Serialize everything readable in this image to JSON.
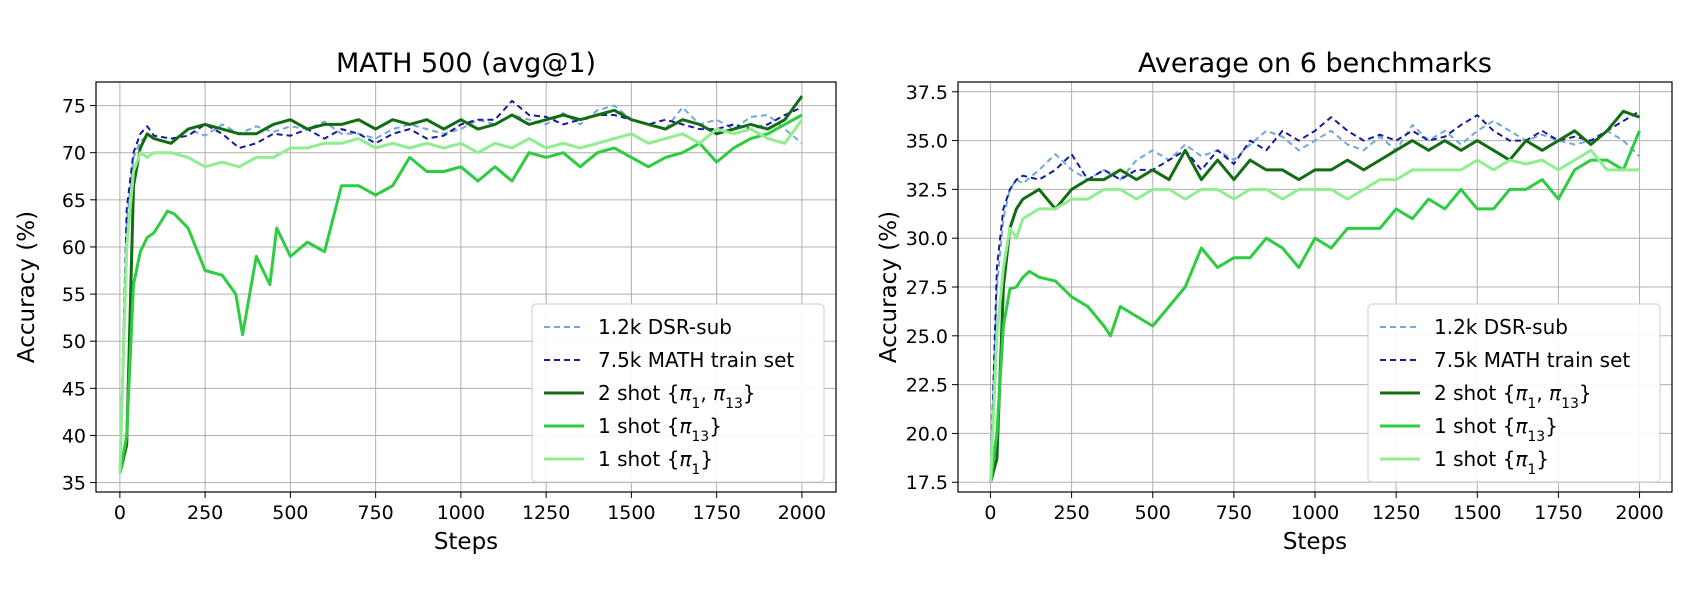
{
  "chart_data": [
    {
      "type": "line",
      "title": "MATH 500 (avg@1)",
      "xlabel": "Steps",
      "ylabel": "Accuracy (%)",
      "xlim": [
        -70,
        2100
      ],
      "ylim": [
        34,
        77.5
      ],
      "grid": true,
      "legend_position": "lower-right",
      "xticks": [
        0,
        250,
        500,
        750,
        1000,
        1250,
        1500,
        1750,
        2000
      ],
      "xtick_labels": [
        "0",
        "250",
        "500",
        "750",
        "1000",
        "1250",
        "1500",
        "1750",
        "2000"
      ],
      "yticks": [
        35,
        40,
        45,
        50,
        55,
        60,
        65,
        70,
        75
      ],
      "ytick_labels": [
        "35",
        "40",
        "45",
        "50",
        "55",
        "60",
        "65",
        "70",
        "75"
      ],
      "series": [
        {
          "name": "1.2k DSR-sub",
          "color": "#6fa8dc",
          "style": "dashed",
          "x": [
            0,
            20,
            40,
            60,
            80,
            100,
            150,
            200,
            250,
            300,
            350,
            400,
            450,
            500,
            550,
            600,
            650,
            700,
            750,
            800,
            850,
            900,
            950,
            1000,
            1050,
            1100,
            1150,
            1200,
            1250,
            1300,
            1350,
            1400,
            1450,
            1500,
            1550,
            1600,
            1650,
            1700,
            1750,
            1800,
            1850,
            1900,
            1950,
            2000
          ],
          "y": [
            36.5,
            62.5,
            69.5,
            71.2,
            71.8,
            71.5,
            71.0,
            72.5,
            71.8,
            73.0,
            72.0,
            72.8,
            72.2,
            72.8,
            72.5,
            73.3,
            72.0,
            72.0,
            71.5,
            72.5,
            73.0,
            72.5,
            72.0,
            72.5,
            73.5,
            73.0,
            74.0,
            73.5,
            73.0,
            74.2,
            73.0,
            74.5,
            75.0,
            73.5,
            73.0,
            72.5,
            74.8,
            73.0,
            73.5,
            72.5,
            73.8,
            74.0,
            72.5,
            71.0
          ]
        },
        {
          "name": "7.5k MATH train set",
          "color": "#1a1a9e",
          "style": "dashed",
          "x": [
            0,
            20,
            40,
            60,
            80,
            100,
            150,
            200,
            250,
            300,
            350,
            400,
            450,
            500,
            550,
            600,
            650,
            700,
            750,
            800,
            850,
            900,
            950,
            1000,
            1050,
            1100,
            1150,
            1200,
            1250,
            1300,
            1350,
            1400,
            1450,
            1500,
            1550,
            1600,
            1650,
            1700,
            1750,
            1800,
            1850,
            1900,
            1950,
            2000
          ],
          "y": [
            36.0,
            64.0,
            70.0,
            72.0,
            72.8,
            71.8,
            71.5,
            71.8,
            73.0,
            72.0,
            70.5,
            71.0,
            72.0,
            71.8,
            72.5,
            71.5,
            72.5,
            72.0,
            71.0,
            72.0,
            72.5,
            71.5,
            71.8,
            73.0,
            73.5,
            73.5,
            75.5,
            74.0,
            73.8,
            73.0,
            73.5,
            74.0,
            74.0,
            73.5,
            73.0,
            73.5,
            73.0,
            72.5,
            72.5,
            73.0,
            72.5,
            73.0,
            74.0,
            74.8
          ]
        },
        {
          "name": "2 shot {π1, π13}",
          "color": "#136b13",
          "style": "solid",
          "x": [
            0,
            20,
            40,
            60,
            80,
            100,
            150,
            200,
            250,
            300,
            350,
            400,
            450,
            500,
            550,
            600,
            650,
            700,
            750,
            800,
            850,
            900,
            950,
            1000,
            1050,
            1100,
            1150,
            1200,
            1250,
            1300,
            1350,
            1400,
            1450,
            1500,
            1550,
            1600,
            1650,
            1700,
            1750,
            1800,
            1850,
            1900,
            1950,
            2000
          ],
          "y": [
            36.0,
            39.0,
            66.5,
            70.5,
            72.0,
            71.5,
            71.0,
            72.5,
            73.0,
            72.5,
            72.0,
            72.0,
            73.0,
            73.5,
            72.5,
            73.0,
            73.0,
            73.5,
            72.5,
            73.5,
            73.0,
            73.5,
            72.5,
            73.5,
            72.5,
            73.0,
            74.0,
            73.0,
            73.5,
            74.0,
            73.5,
            74.0,
            74.5,
            73.5,
            73.0,
            72.5,
            73.5,
            73.0,
            72.0,
            72.5,
            73.0,
            72.5,
            73.5,
            76.0
          ]
        },
        {
          "name": "1 shot {π13}",
          "color": "#2ecc40",
          "style": "solid",
          "x": [
            0,
            20,
            40,
            60,
            80,
            100,
            140,
            160,
            200,
            250,
            300,
            340,
            360,
            400,
            440,
            460,
            500,
            550,
            600,
            650,
            700,
            750,
            800,
            850,
            900,
            950,
            1000,
            1050,
            1100,
            1150,
            1200,
            1250,
            1300,
            1350,
            1400,
            1450,
            1500,
            1550,
            1600,
            1650,
            1700,
            1750,
            1800,
            1850,
            1900,
            1950,
            2000
          ],
          "y": [
            36.0,
            40.0,
            56.0,
            59.5,
            61.0,
            61.5,
            63.8,
            63.5,
            62.0,
            57.5,
            57.0,
            55.0,
            50.7,
            59.0,
            56.0,
            62.0,
            59.0,
            60.5,
            59.5,
            66.5,
            66.5,
            65.5,
            66.5,
            69.5,
            68.0,
            68.0,
            68.5,
            67.0,
            68.5,
            67.0,
            70.0,
            69.5,
            70.0,
            68.5,
            70.0,
            70.5,
            69.5,
            68.5,
            69.5,
            70.0,
            71.0,
            69.0,
            70.5,
            71.5,
            72.0,
            73.0,
            74.0
          ]
        },
        {
          "name": "1 shot {π1}",
          "color": "#90ee90",
          "style": "solid",
          "x": [
            0,
            20,
            40,
            60,
            80,
            100,
            150,
            200,
            250,
            300,
            350,
            400,
            450,
            500,
            550,
            600,
            650,
            700,
            750,
            800,
            850,
            900,
            950,
            1000,
            1050,
            1100,
            1150,
            1200,
            1250,
            1300,
            1350,
            1400,
            1450,
            1500,
            1550,
            1600,
            1650,
            1700,
            1750,
            1800,
            1850,
            1900,
            1950,
            2000
          ],
          "y": [
            36.0,
            60.0,
            68.0,
            70.0,
            69.5,
            70.0,
            70.0,
            69.5,
            68.5,
            69.0,
            68.5,
            69.5,
            69.5,
            70.5,
            70.5,
            71.0,
            71.0,
            71.5,
            70.5,
            71.0,
            70.5,
            71.0,
            70.5,
            71.0,
            70.0,
            71.0,
            70.5,
            71.5,
            70.5,
            71.0,
            70.5,
            71.0,
            71.5,
            72.0,
            71.0,
            71.5,
            72.0,
            71.0,
            72.5,
            72.0,
            72.5,
            71.5,
            71.0,
            73.5
          ]
        }
      ]
    },
    {
      "type": "line",
      "title": "Average on 6 benchmarks",
      "xlabel": "Steps",
      "ylabel": "Accuracy (%)",
      "xlim": [
        -100,
        2100
      ],
      "ylim": [
        17,
        38
      ],
      "grid": true,
      "legend_position": "lower-right",
      "xticks": [
        0,
        250,
        500,
        750,
        1000,
        1250,
        1500,
        1750,
        2000
      ],
      "xtick_labels": [
        "0",
        "250",
        "500",
        "750",
        "1000",
        "1250",
        "1500",
        "1750",
        "2000"
      ],
      "yticks": [
        17.5,
        20.0,
        22.5,
        25.0,
        27.5,
        30.0,
        32.5,
        35.0,
        37.5
      ],
      "ytick_labels": [
        "17.5",
        "20.0",
        "22.5",
        "25.0",
        "27.5",
        "30.0",
        "32.5",
        "35.0",
        "37.5"
      ],
      "series": [
        {
          "name": "1.2k DSR-sub",
          "color": "#6fa8dc",
          "style": "dashed",
          "x": [
            0,
            20,
            40,
            60,
            80,
            100,
            150,
            200,
            250,
            300,
            350,
            400,
            450,
            500,
            550,
            600,
            650,
            700,
            750,
            800,
            850,
            900,
            950,
            1000,
            1050,
            1100,
            1150,
            1200,
            1250,
            1300,
            1350,
            1400,
            1450,
            1500,
            1550,
            1600,
            1650,
            1700,
            1750,
            1800,
            1850,
            1900,
            1950,
            2000
          ],
          "y": [
            17.8,
            27.5,
            31.0,
            32.5,
            33.0,
            32.8,
            33.5,
            34.3,
            33.5,
            33.0,
            33.5,
            33.0,
            34.0,
            34.5,
            34.0,
            34.8,
            34.2,
            34.5,
            34.0,
            34.8,
            35.5,
            35.2,
            34.5,
            35.0,
            35.5,
            34.8,
            34.5,
            35.2,
            34.5,
            35.8,
            35.0,
            35.5,
            34.8,
            35.5,
            36.0,
            35.5,
            35.0,
            35.3,
            35.0,
            34.8,
            35.0,
            35.5,
            35.0,
            34.2
          ]
        },
        {
          "name": "7.5k MATH train set",
          "color": "#1a1a9e",
          "style": "dashed",
          "x": [
            0,
            20,
            40,
            60,
            80,
            100,
            150,
            200,
            250,
            300,
            350,
            400,
            450,
            500,
            550,
            600,
            650,
            700,
            750,
            800,
            850,
            900,
            950,
            1000,
            1050,
            1100,
            1150,
            1200,
            1250,
            1300,
            1350,
            1400,
            1450,
            1500,
            1550,
            1600,
            1650,
            1700,
            1750,
            1800,
            1850,
            1900,
            1950,
            2000
          ],
          "y": [
            17.6,
            28.5,
            31.5,
            32.5,
            33.0,
            33.2,
            33.0,
            33.5,
            34.3,
            33.0,
            33.5,
            33.0,
            33.5,
            33.5,
            34.0,
            34.5,
            33.5,
            34.5,
            33.8,
            35.0,
            34.5,
            35.5,
            35.0,
            35.5,
            36.2,
            35.5,
            35.0,
            35.3,
            35.0,
            35.5,
            35.0,
            35.2,
            35.8,
            36.3,
            35.5,
            35.0,
            35.0,
            35.5,
            35.0,
            35.2,
            35.0,
            35.5,
            36.0,
            36.5
          ]
        },
        {
          "name": "2 shot {π1, π13}",
          "color": "#136b13",
          "style": "solid",
          "x": [
            0,
            20,
            40,
            60,
            80,
            100,
            150,
            200,
            250,
            300,
            350,
            400,
            450,
            500,
            550,
            600,
            650,
            700,
            750,
            800,
            850,
            900,
            950,
            1000,
            1050,
            1100,
            1150,
            1200,
            1250,
            1300,
            1350,
            1400,
            1450,
            1500,
            1550,
            1600,
            1650,
            1700,
            1750,
            1800,
            1850,
            1900,
            1950,
            2000
          ],
          "y": [
            17.5,
            18.7,
            27.5,
            30.5,
            31.5,
            32.0,
            32.5,
            31.5,
            32.5,
            33.0,
            33.0,
            33.5,
            33.0,
            33.5,
            33.0,
            34.5,
            33.0,
            34.0,
            33.0,
            34.0,
            33.5,
            33.5,
            33.0,
            33.5,
            33.5,
            34.0,
            33.5,
            34.0,
            34.5,
            35.0,
            34.5,
            35.0,
            34.5,
            35.0,
            34.5,
            34.0,
            35.0,
            34.5,
            35.0,
            35.5,
            34.8,
            35.5,
            36.5,
            36.2
          ]
        },
        {
          "name": "1 shot {π13}",
          "color": "#2ecc40",
          "style": "solid",
          "x": [
            0,
            20,
            40,
            60,
            80,
            100,
            120,
            150,
            200,
            250,
            300,
            350,
            370,
            400,
            450,
            500,
            550,
            600,
            650,
            700,
            750,
            800,
            850,
            900,
            950,
            1000,
            1050,
            1100,
            1150,
            1200,
            1250,
            1300,
            1350,
            1400,
            1450,
            1500,
            1550,
            1600,
            1650,
            1700,
            1750,
            1800,
            1850,
            1900,
            1950,
            2000
          ],
          "y": [
            17.5,
            20.0,
            25.5,
            27.4,
            27.5,
            28.0,
            28.3,
            28.0,
            27.8,
            27.0,
            26.5,
            25.5,
            25.0,
            26.5,
            26.0,
            25.5,
            26.5,
            27.5,
            29.5,
            28.5,
            29.0,
            29.0,
            30.0,
            29.5,
            28.5,
            30.0,
            29.5,
            30.5,
            30.5,
            30.5,
            31.5,
            31.0,
            32.0,
            31.5,
            32.5,
            31.5,
            31.5,
            32.5,
            32.5,
            33.0,
            32.0,
            33.5,
            34.0,
            34.0,
            33.5,
            35.5
          ]
        },
        {
          "name": "1 shot {π1}",
          "color": "#90ee90",
          "style": "solid",
          "x": [
            0,
            20,
            40,
            60,
            80,
            100,
            150,
            200,
            250,
            300,
            350,
            400,
            450,
            500,
            550,
            600,
            650,
            700,
            750,
            800,
            850,
            900,
            950,
            1000,
            1050,
            1100,
            1150,
            1200,
            1250,
            1300,
            1350,
            1400,
            1450,
            1500,
            1550,
            1600,
            1650,
            1700,
            1750,
            1800,
            1850,
            1900,
            1950,
            2000
          ],
          "y": [
            17.5,
            25.0,
            28.5,
            30.5,
            30.0,
            31.0,
            31.5,
            31.5,
            32.0,
            32.0,
            32.5,
            32.5,
            32.0,
            32.5,
            32.5,
            32.0,
            32.5,
            32.5,
            32.0,
            32.5,
            32.5,
            32.0,
            32.5,
            32.5,
            32.5,
            32.0,
            32.5,
            33.0,
            33.0,
            33.5,
            33.5,
            33.5,
            33.5,
            34.0,
            33.5,
            34.0,
            33.8,
            34.0,
            33.5,
            34.0,
            34.5,
            33.5,
            33.5,
            33.5
          ]
        }
      ]
    }
  ]
}
